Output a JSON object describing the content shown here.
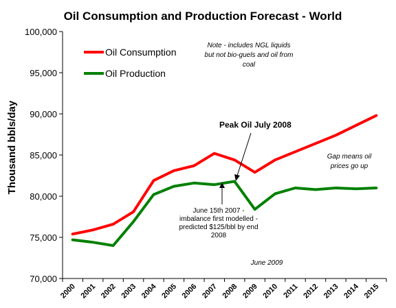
{
  "chart_data": {
    "type": "line",
    "title": "Oil Consumption and Production Forecast - World",
    "ylabel": "Thousand bbls/day",
    "xlabel": "",
    "ylim": [
      70000,
      100000
    ],
    "yticks": [
      70000,
      75000,
      80000,
      85000,
      90000,
      95000,
      100000
    ],
    "ytick_labels": [
      "70,000",
      "75,000",
      "80,000",
      "85,000",
      "90,000",
      "95,000",
      "100,000"
    ],
    "categories": [
      "2000",
      "2001",
      "2002",
      "2003",
      "2004",
      "2005",
      "2006",
      "2007",
      "2008",
      "2009",
      "2010",
      "2011",
      "2012",
      "2013",
      "2014",
      "2015"
    ],
    "grid": false,
    "legend_position": "top-left",
    "series": [
      {
        "name": "Oil Consumption",
        "color": "#ff0000",
        "values": [
          75400,
          75900,
          76600,
          78100,
          81900,
          83100,
          83700,
          85200,
          84400,
          82900,
          84400,
          85400,
          86400,
          87400,
          88600,
          89800
        ]
      },
      {
        "name": "Oil Production",
        "color": "#008000",
        "values": [
          74700,
          74400,
          74000,
          76900,
          80200,
          81200,
          81600,
          81400,
          81800,
          78400,
          80300,
          81000,
          80800,
          81000,
          80900,
          81000
        ]
      }
    ],
    "annotations": {
      "note_lines": [
        "Note - includes NGL liquids",
        "but not bio-guels and  oil from",
        "coal"
      ],
      "peak_label": "Peak Oil July 2008",
      "gap_lines": [
        "Gap means oil",
        "prices go up"
      ],
      "imbalance_lines": [
        "June 15th 2007 -",
        "imbalance first modelled -",
        "predicted $125/bbl by end",
        "2008"
      ],
      "date_label": "June 2009"
    }
  }
}
